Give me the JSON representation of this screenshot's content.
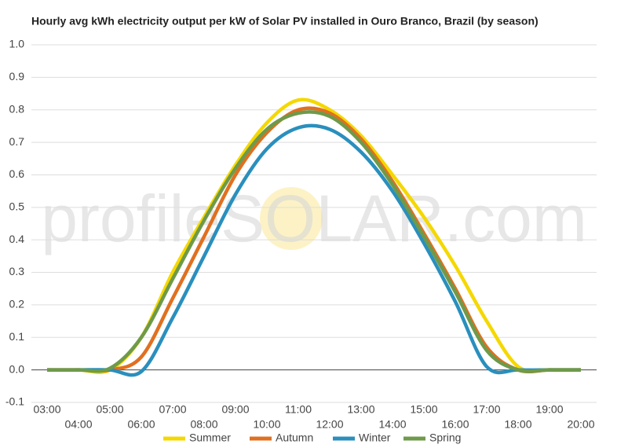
{
  "chart_data": {
    "type": "line",
    "title": "Hourly avg kWh electricity output per kW of Solar PV installed in Ouro Branco, Brazil (by season)",
    "watermark": "profileSOLAR.com",
    "categories": [
      "03:00",
      "04:00",
      "05:00",
      "06:00",
      "07:00",
      "08:00",
      "09:00",
      "10:00",
      "11:00",
      "12:00",
      "13:00",
      "14:00",
      "15:00",
      "16:00",
      "17:00",
      "18:00",
      "19:00",
      "20:00"
    ],
    "series": [
      {
        "name": "Summer",
        "color": "#f5d800",
        "values": [
          0,
          0,
          0,
          0.1,
          0.3,
          0.47,
          0.63,
          0.76,
          0.83,
          0.8,
          0.72,
          0.6,
          0.47,
          0.32,
          0.15,
          0.01,
          0,
          0
        ]
      },
      {
        "name": "Autumn",
        "color": "#e07020",
        "values": [
          0,
          0,
          0,
          0.04,
          0.22,
          0.41,
          0.6,
          0.73,
          0.8,
          0.79,
          0.71,
          0.58,
          0.42,
          0.25,
          0.07,
          0,
          0,
          0
        ]
      },
      {
        "name": "Winter",
        "color": "#2a8fbd",
        "values": [
          0,
          0,
          0,
          -0.005,
          0.16,
          0.35,
          0.54,
          0.68,
          0.745,
          0.74,
          0.67,
          0.55,
          0.39,
          0.21,
          0.01,
          0,
          0,
          0
        ]
      },
      {
        "name": "Spring",
        "color": "#6e9a4a",
        "values": [
          0,
          0,
          0.005,
          0.1,
          0.28,
          0.46,
          0.62,
          0.74,
          0.79,
          0.78,
          0.7,
          0.57,
          0.41,
          0.24,
          0.06,
          0,
          0,
          0
        ]
      }
    ],
    "ylim": [
      -0.1,
      1.0
    ],
    "yticks": [
      -0.1,
      {
        "value": 0,
        "label": "0.0"
      },
      0.1,
      0.2,
      0.3,
      0.4,
      0.5,
      0.6,
      0.7,
      0.8,
      0.9,
      {
        "value": 1,
        "label": "1.0"
      }
    ],
    "grid": true,
    "legend": "bottom"
  }
}
